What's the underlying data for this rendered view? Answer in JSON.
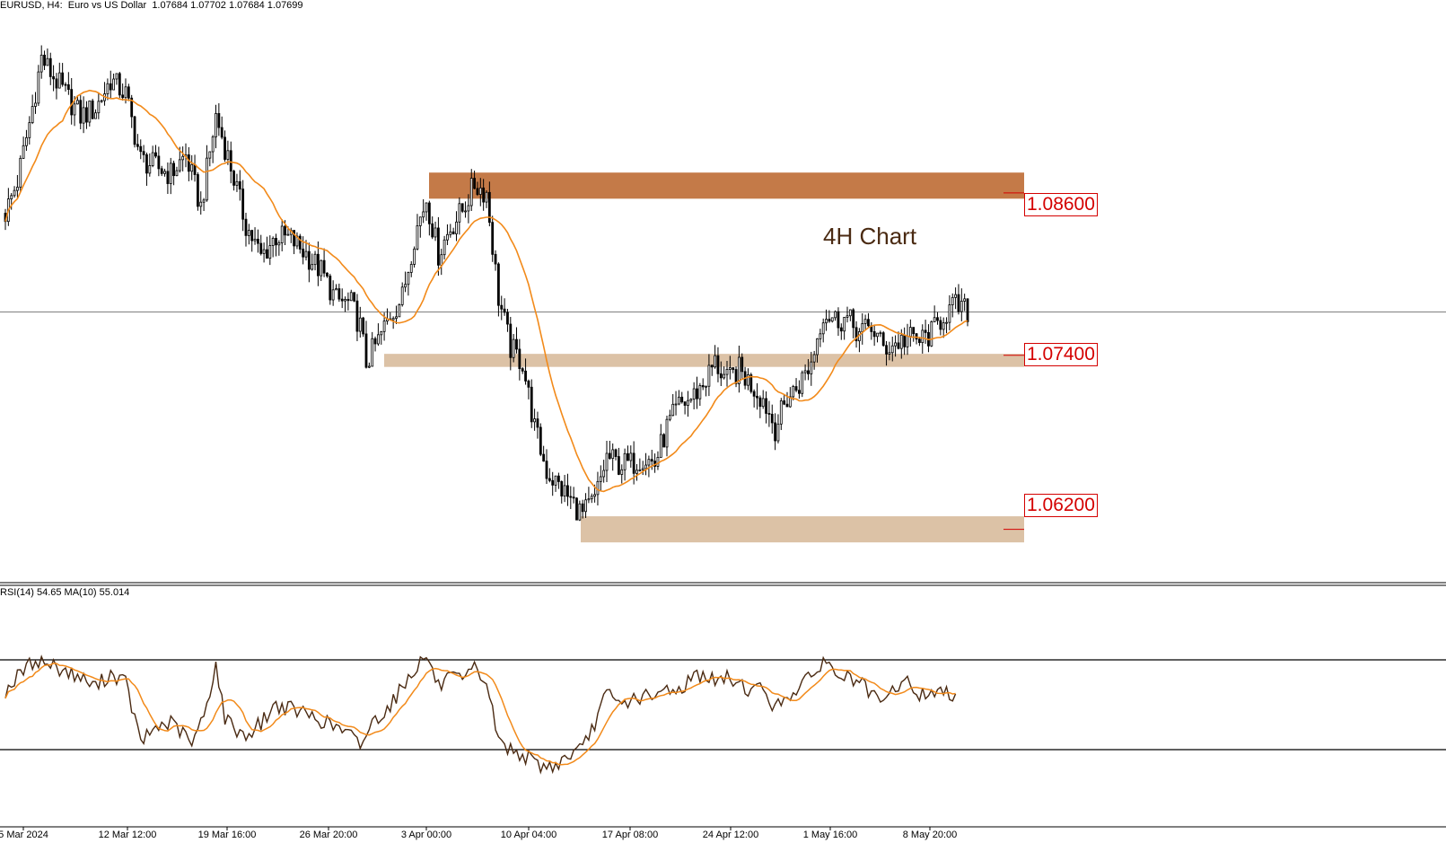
{
  "header": {
    "symbol_line": "EURUSD, H4:  Euro vs US Dollar  1.07684 1.07702 1.07684 1.07699"
  },
  "annotation": "4H Chart",
  "rsi_label": "RSI(14) 54.65 MA(10) 55.014",
  "colors": {
    "candle": "#000000",
    "ma": "#f28a1a",
    "resistance_zone": "#c47a48",
    "support_zone": "#dcc2a6",
    "level_text": "#d40000",
    "rsi_line": "#4a2a12",
    "rsi_ma": "#f28a1a"
  },
  "chart_data": [
    {
      "type": "candlestick",
      "symbol": "EURUSD",
      "timeframe": "H4",
      "ylim": [
        1.0595,
        1.0985
      ],
      "x_ticks": [
        "5 Mar 2024",
        "12 Mar 12:00",
        "19 Mar 16:00",
        "26 Mar 20:00",
        "3 Apr 00:00",
        "10 Apr 04:00",
        "17 Apr 08:00",
        "24 Apr 12:00",
        "1 May 16:00",
        "8 May 20:00"
      ],
      "current_price": 1.07699,
      "levels": [
        {
          "label": "1.08600",
          "value": 1.086,
          "zone": [
            1.0848,
            1.0866
          ],
          "style": "resistance"
        },
        {
          "label": "1.07400",
          "value": 1.074,
          "zone": [
            1.0732,
            1.0741
          ],
          "style": "support"
        },
        {
          "label": "1.06200",
          "value": 1.062,
          "zone": [
            1.0611,
            1.0629
          ],
          "style": "support"
        }
      ],
      "price_anchors": [
        [
          0,
          1.0838
        ],
        [
          4,
          1.086
        ],
        [
          8,
          1.09
        ],
        [
          12,
          1.0945
        ],
        [
          15,
          1.0935
        ],
        [
          20,
          1.092
        ],
        [
          25,
          1.0905
        ],
        [
          30,
          1.091
        ],
        [
          35,
          1.093
        ],
        [
          40,
          1.092
        ],
        [
          45,
          1.0875
        ],
        [
          50,
          1.087
        ],
        [
          55,
          1.0865
        ],
        [
          60,
          1.0878
        ],
        [
          65,
          1.0842
        ],
        [
          70,
          1.0905
        ],
        [
          75,
          1.087
        ],
        [
          80,
          1.083
        ],
        [
          85,
          1.0808
        ],
        [
          90,
          1.0822
        ],
        [
          95,
          1.082
        ],
        [
          100,
          1.081
        ],
        [
          105,
          1.0798
        ],
        [
          110,
          1.0778
        ],
        [
          115,
          1.0775
        ],
        [
          118,
          1.076
        ],
        [
          120,
          1.0735
        ],
        [
          124,
          1.075
        ],
        [
          128,
          1.0768
        ],
        [
          132,
          1.078
        ],
        [
          136,
          1.0822
        ],
        [
          140,
          1.0848
        ],
        [
          144,
          1.081
        ],
        [
          148,
          1.0828
        ],
        [
          152,
          1.084
        ],
        [
          156,
          1.0858
        ],
        [
          160,
          1.0852
        ],
        [
          164,
          1.078
        ],
        [
          168,
          1.0745
        ],
        [
          172,
          1.0735
        ],
        [
          176,
          1.069
        ],
        [
          180,
          1.066
        ],
        [
          184,
          1.065
        ],
        [
          188,
          1.064
        ],
        [
          192,
          1.063
        ],
        [
          196,
          1.064
        ],
        [
          200,
          1.067
        ],
        [
          204,
          1.0665
        ],
        [
          208,
          1.0665
        ],
        [
          212,
          1.067
        ],
        [
          216,
          1.0665
        ],
        [
          220,
          1.069
        ],
        [
          224,
          1.0705
        ],
        [
          228,
          1.071
        ],
        [
          232,
          1.072
        ],
        [
          236,
          1.0735
        ],
        [
          240,
          1.0722
        ],
        [
          244,
          1.073
        ],
        [
          248,
          1.072
        ],
        [
          252,
          1.071
        ],
        [
          256,
          1.069
        ],
        [
          260,
          1.071
        ],
        [
          264,
          1.072
        ],
        [
          268,
          1.0735
        ],
        [
          272,
          1.077
        ],
        [
          276,
          1.0765
        ],
        [
          280,
          1.0765
        ],
        [
          284,
          1.0755
        ],
        [
          288,
          1.076
        ],
        [
          292,
          1.0745
        ],
        [
          296,
          1.0748
        ],
        [
          300,
          1.0752
        ],
        [
          304,
          1.075
        ],
        [
          308,
          1.0755
        ],
        [
          312,
          1.0768
        ],
        [
          316,
          1.0774
        ],
        [
          320,
          1.077
        ]
      ],
      "ma_period": 20
    },
    {
      "type": "line",
      "name": "RSI(14)",
      "ylim": [
        0,
        100
      ],
      "levels": [
        70,
        30
      ],
      "anchors": [
        [
          0,
          56
        ],
        [
          5,
          64
        ],
        [
          10,
          70
        ],
        [
          15,
          68
        ],
        [
          20,
          65
        ],
        [
          25,
          62
        ],
        [
          30,
          58
        ],
        [
          35,
          64
        ],
        [
          40,
          60
        ],
        [
          45,
          33
        ],
        [
          50,
          40
        ],
        [
          55,
          42
        ],
        [
          60,
          36
        ],
        [
          62,
          32
        ],
        [
          66,
          45
        ],
        [
          70,
          68
        ],
        [
          73,
          44
        ],
        [
          76,
          40
        ],
        [
          80,
          36
        ],
        [
          85,
          42
        ],
        [
          90,
          50
        ],
        [
          95,
          48
        ],
        [
          100,
          46
        ],
        [
          105,
          43
        ],
        [
          110,
          40
        ],
        [
          115,
          36
        ],
        [
          118,
          32
        ],
        [
          122,
          42
        ],
        [
          128,
          50
        ],
        [
          132,
          58
        ],
        [
          136,
          66
        ],
        [
          140,
          72
        ],
        [
          144,
          58
        ],
        [
          148,
          62
        ],
        [
          152,
          60
        ],
        [
          156,
          66
        ],
        [
          160,
          60
        ],
        [
          164,
          34
        ],
        [
          168,
          30
        ],
        [
          172,
          28
        ],
        [
          176,
          24
        ],
        [
          180,
          22
        ],
        [
          184,
          24
        ],
        [
          188,
          28
        ],
        [
          192,
          30
        ],
        [
          196,
          42
        ],
        [
          200,
          55
        ],
        [
          204,
          50
        ],
        [
          208,
          52
        ],
        [
          212,
          54
        ],
        [
          216,
          52
        ],
        [
          220,
          58
        ],
        [
          224,
          56
        ],
        [
          228,
          62
        ],
        [
          232,
          64
        ],
        [
          236,
          60
        ],
        [
          240,
          62
        ],
        [
          244,
          60
        ],
        [
          248,
          56
        ],
        [
          252,
          58
        ],
        [
          256,
          48
        ],
        [
          260,
          54
        ],
        [
          264,
          58
        ],
        [
          268,
          62
        ],
        [
          272,
          70
        ],
        [
          276,
          64
        ],
        [
          280,
          62
        ],
        [
          284,
          60
        ],
        [
          288,
          54
        ],
        [
          292,
          50
        ],
        [
          296,
          58
        ],
        [
          300,
          60
        ],
        [
          304,
          54
        ],
        [
          308,
          56
        ],
        [
          312,
          55
        ],
        [
          316,
          55
        ]
      ],
      "ma_period": 10
    }
  ]
}
